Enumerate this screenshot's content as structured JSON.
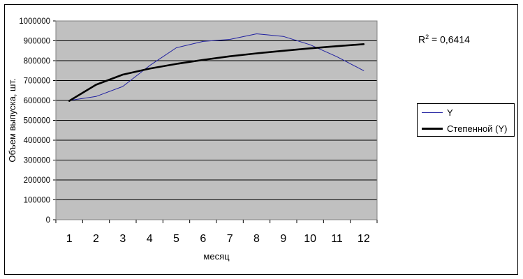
{
  "chart_data": {
    "type": "line",
    "x": [
      1,
      2,
      3,
      4,
      5,
      6,
      7,
      8,
      9,
      10,
      11,
      12
    ],
    "series": [
      {
        "name": "Y",
        "color": "#1f1fa0",
        "values": [
          600000,
          620000,
          670000,
          775000,
          865000,
          897000,
          907000,
          935000,
          922000,
          880000,
          820000,
          750000
        ]
      },
      {
        "name": "Степенной (Y)",
        "color": "#000000",
        "type": "trendline-power",
        "values": [
          598000,
          679000,
          730000,
          760000,
          784000,
          804000,
          822000,
          837000,
          850000,
          862000,
          873000,
          883000
        ]
      }
    ],
    "xlabel": "месяц",
    "ylabel": "Объем выпуска, шт.",
    "ylim": [
      0,
      1000000
    ],
    "yticks": [
      "0",
      "100000",
      "200000",
      "300000",
      "400000",
      "500000",
      "600000",
      "700000",
      "800000",
      "900000",
      "1000000"
    ],
    "xticks": [
      "1",
      "2",
      "3",
      "4",
      "5",
      "6",
      "7",
      "8",
      "9",
      "10",
      "11",
      "12"
    ],
    "grid": "horizontal",
    "plot_background": "#c0c0c0",
    "legend_position": "right",
    "annotation": {
      "r2_prefix": "R",
      "r2_sup": "2",
      "r2_value": " = 0,6414"
    }
  }
}
